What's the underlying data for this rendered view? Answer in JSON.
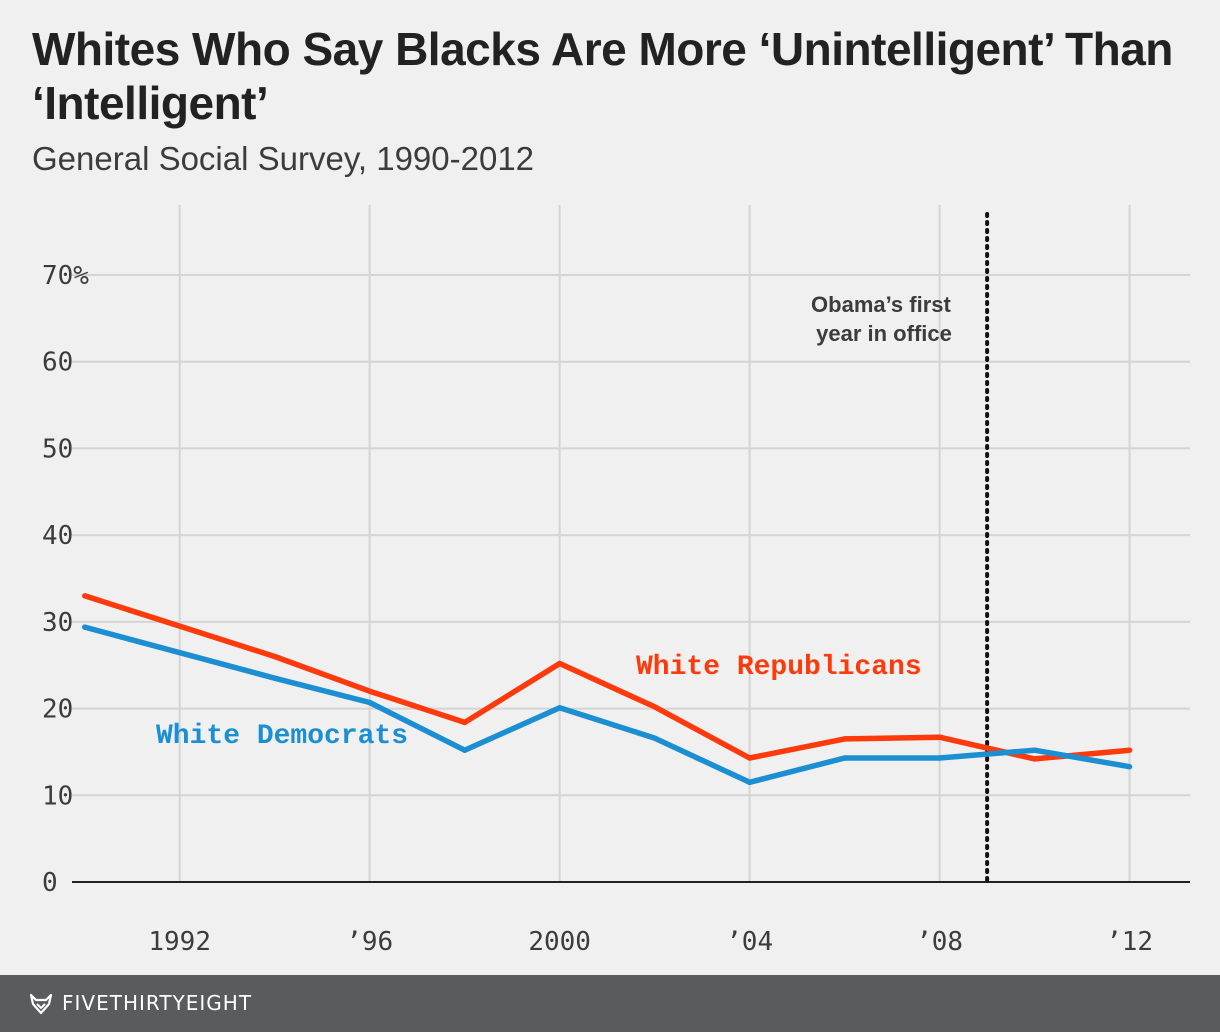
{
  "header": {
    "title": "Whites Who Say Blacks Are More ‘Unintelligent’ Than ‘Intelligent’",
    "subtitle": "General Social Survey, 1990-2012"
  },
  "footer": {
    "brand": "FIVETHIRTYEIGHT",
    "logo_icon": "fox-icon"
  },
  "chart_data": {
    "type": "line",
    "title": "Whites Who Say Blacks Are More ‘Unintelligent’ Than ‘Intelligent’",
    "subtitle": "General Social Survey, 1990-2012",
    "xlabel": "",
    "ylabel": "",
    "xlim": [
      1989,
      2013.2
    ],
    "ylim": [
      0,
      75
    ],
    "grid": true,
    "y_ticks": [
      0,
      10,
      20,
      30,
      40,
      50,
      60,
      70
    ],
    "y_tick_labels": [
      "0",
      "10",
      "20",
      "30",
      "40",
      "50",
      "60",
      "70%"
    ],
    "x_ticks": [
      1992,
      1996,
      2000,
      2004,
      2008,
      2012
    ],
    "x_tick_labels": [
      "1992",
      "’96",
      "2000",
      "’04",
      "’08",
      "’12"
    ],
    "x": [
      1990,
      1994,
      1996,
      1998,
      2000,
      2002,
      2004,
      2006,
      2008,
      2010,
      2012
    ],
    "series": [
      {
        "name": "White Republicans",
        "color": "#fc3a0c",
        "values": [
          33,
          26,
          22,
          18.4,
          25.2,
          20.2,
          14.3,
          16.5,
          16.7,
          14.2,
          15.2
        ]
      },
      {
        "name": "White Democrats",
        "color": "#1b8fd2",
        "values": [
          29.4,
          23.5,
          20.7,
          15.2,
          20.1,
          16.6,
          11.5,
          14.3,
          14.3,
          15.2,
          13.3
        ]
      }
    ],
    "annotations": [
      {
        "text_lines": [
          "Obama’s first",
          "year in office"
        ],
        "x": 2009,
        "style": "dotted-vertical-line",
        "color": "#111111"
      }
    ],
    "colors": {
      "background": "#f0f0f0",
      "grid": "#d4d4d4",
      "axis": "#222222",
      "text": "#3c3c3c",
      "footer": "#5a5b5c"
    }
  }
}
